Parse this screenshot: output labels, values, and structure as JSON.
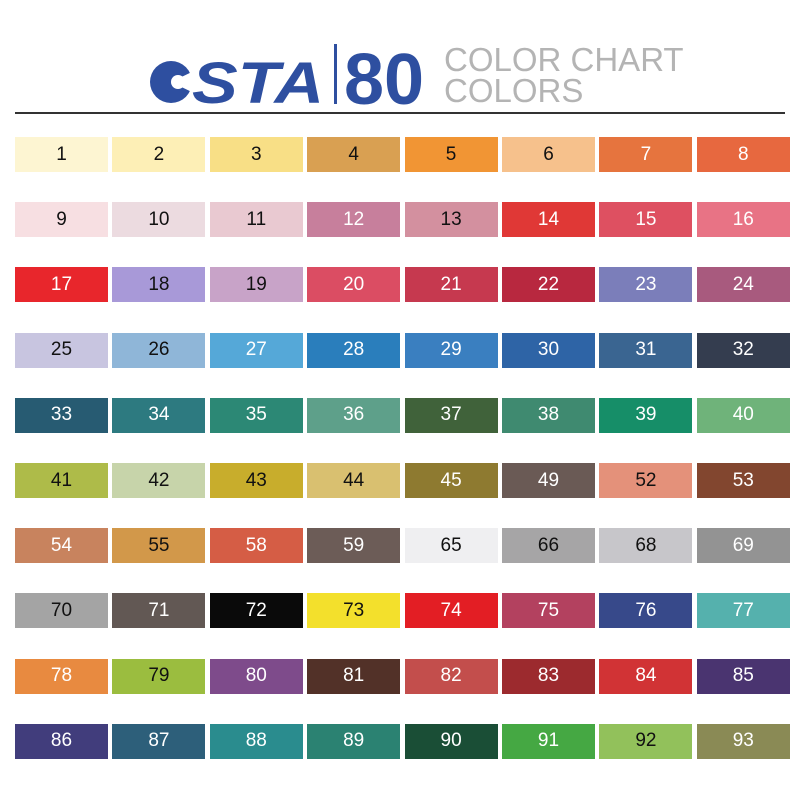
{
  "header": {
    "logo": "STA",
    "count": "80",
    "line1": "COLOR CHART",
    "line2": "COLORS"
  },
  "swatches": [
    {
      "label": "1",
      "color": "#fdf5d2"
    },
    {
      "label": "2",
      "color": "#fdefb6"
    },
    {
      "label": "3",
      "color": "#f8df86"
    },
    {
      "label": "4",
      "color": "#d9a052"
    },
    {
      "label": "5",
      "color": "#f19534"
    },
    {
      "label": "6",
      "color": "#f6c18c"
    },
    {
      "label": "7",
      "color": "#e6743e"
    },
    {
      "label": "8",
      "color": "#e7683f"
    },
    {
      "label": "9",
      "color": "#f7dfe2"
    },
    {
      "label": "10",
      "color": "#ecdbe0"
    },
    {
      "label": "11",
      "color": "#e9c9d1"
    },
    {
      "label": "12",
      "color": "#c77f9c"
    },
    {
      "label": "13",
      "color": "#d3909f"
    },
    {
      "label": "14",
      "color": "#e03836"
    },
    {
      "label": "15",
      "color": "#de5061"
    },
    {
      "label": "16",
      "color": "#e87385"
    },
    {
      "label": "17",
      "color": "#e8262c"
    },
    {
      "label": "18",
      "color": "#a899d8"
    },
    {
      "label": "19",
      "color": "#c8a3c8"
    },
    {
      "label": "20",
      "color": "#db4d63"
    },
    {
      "label": "21",
      "color": "#c6394f"
    },
    {
      "label": "22",
      "color": "#b8283f"
    },
    {
      "label": "23",
      "color": "#7b7eba"
    },
    {
      "label": "24",
      "color": "#a85a7e"
    },
    {
      "label": "25",
      "color": "#c8c5e0"
    },
    {
      "label": "26",
      "color": "#8fb6d8"
    },
    {
      "label": "27",
      "color": "#55a8d8"
    },
    {
      "label": "28",
      "color": "#2a7ebc"
    },
    {
      "label": "29",
      "color": "#3a7fc0"
    },
    {
      "label": "30",
      "color": "#2e64a6"
    },
    {
      "label": "31",
      "color": "#3a6591"
    },
    {
      "label": "32",
      "color": "#343d4f"
    },
    {
      "label": "33",
      "color": "#275b72"
    },
    {
      "label": "34",
      "color": "#2d7a80"
    },
    {
      "label": "35",
      "color": "#2c8875"
    },
    {
      "label": "36",
      "color": "#5ea08a"
    },
    {
      "label": "37",
      "color": "#40623a"
    },
    {
      "label": "38",
      "color": "#3f8a70"
    },
    {
      "label": "39",
      "color": "#168e68"
    },
    {
      "label": "40",
      "color": "#6fb37a"
    },
    {
      "label": "41",
      "color": "#aebb49"
    },
    {
      "label": "42",
      "color": "#c7d4aa"
    },
    {
      "label": "43",
      "color": "#c8ad2c"
    },
    {
      "label": "44",
      "color": "#d9c070"
    },
    {
      "label": "45",
      "color": "#8e7a30"
    },
    {
      "label": "49",
      "color": "#6a5a55"
    },
    {
      "label": "52",
      "color": "#e4917a"
    },
    {
      "label": "53",
      "color": "#82462f"
    },
    {
      "label": "54",
      "color": "#c8835e"
    },
    {
      "label": "55",
      "color": "#d2984a"
    },
    {
      "label": "58",
      "color": "#d55d45"
    },
    {
      "label": "59",
      "color": "#6c5c57"
    },
    {
      "label": "65",
      "color": "#efeff1"
    },
    {
      "label": "66",
      "color": "#a6a5a6"
    },
    {
      "label": "68",
      "color": "#c7c6ca"
    },
    {
      "label": "69",
      "color": "#939393"
    },
    {
      "label": "70",
      "color": "#a4a4a4"
    },
    {
      "label": "71",
      "color": "#625854"
    },
    {
      "label": "72",
      "color": "#0a0a0a"
    },
    {
      "label": "73",
      "color": "#f3e02c"
    },
    {
      "label": "74",
      "color": "#e31e24"
    },
    {
      "label": "75",
      "color": "#b3415f"
    },
    {
      "label": "76",
      "color": "#37498a"
    },
    {
      "label": "77",
      "color": "#55b1ad"
    },
    {
      "label": "78",
      "color": "#e88a40"
    },
    {
      "label": "79",
      "color": "#9bbd3f"
    },
    {
      "label": "80",
      "color": "#7e4b8b"
    },
    {
      "label": "81",
      "color": "#523128"
    },
    {
      "label": "82",
      "color": "#c34e4c"
    },
    {
      "label": "83",
      "color": "#9c2a2e"
    },
    {
      "label": "84",
      "color": "#d13335"
    },
    {
      "label": "85",
      "color": "#4a3470"
    },
    {
      "label": "86",
      "color": "#413d7c"
    },
    {
      "label": "87",
      "color": "#2d5f7a"
    },
    {
      "label": "88",
      "color": "#2a8c8e"
    },
    {
      "label": "89",
      "color": "#2b8272"
    },
    {
      "label": "90",
      "color": "#1a4e36"
    },
    {
      "label": "91",
      "color": "#45a843"
    },
    {
      "label": "92",
      "color": "#92c15b"
    },
    {
      "label": "93",
      "color": "#8a8a55"
    }
  ]
}
